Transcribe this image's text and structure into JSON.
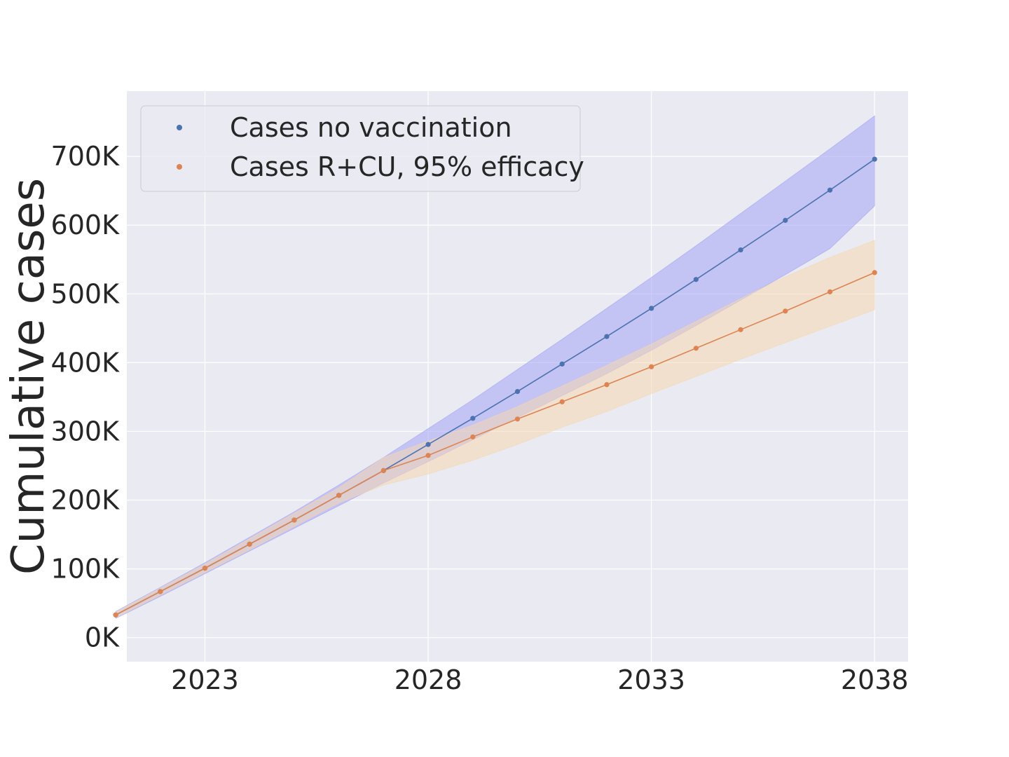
{
  "chart_data": {
    "type": "line",
    "title": "",
    "xlabel": "",
    "ylabel": "Cumulative cases",
    "xlim": [
      2021.25,
      2038.75
    ],
    "ylim": [
      -35000,
      795000
    ],
    "x_ticks": [
      2023,
      2028,
      2033,
      2038
    ],
    "x_tick_labels": [
      "2023",
      "2028",
      "2033",
      "2038"
    ],
    "y_ticks": [
      0,
      100000,
      200000,
      300000,
      400000,
      500000,
      600000,
      700000
    ],
    "y_tick_labels": [
      "0K",
      "100K",
      "200K",
      "300K",
      "400K",
      "500K",
      "600K",
      "700K"
    ],
    "grid": true,
    "legend_position": "top-left",
    "x": [
      2021,
      2022,
      2023,
      2024,
      2025,
      2026,
      2027,
      2028,
      2029,
      2030,
      2031,
      2032,
      2033,
      2034,
      2035,
      2036,
      2037,
      2038
    ],
    "series": [
      {
        "name": "Cases no vaccination",
        "color": "#4c72b0",
        "band_color": "#a3a3f5",
        "values": [
          33000,
          67000,
          101000,
          136000,
          171000,
          207000,
          243000,
          281000,
          319000,
          358000,
          398000,
          438000,
          479000,
          521000,
          564000,
          607000,
          651000,
          696000
        ],
        "lower": [
          28000,
          60000,
          93000,
          126000,
          159000,
          192000,
          225000,
          256000,
          288000,
          320000,
          352000,
          384000,
          418000,
          454000,
          491000,
          528000,
          566000,
          628000
        ],
        "upper": [
          38000,
          73000,
          109000,
          146000,
          183000,
          222000,
          262000,
          304000,
          346000,
          390000,
          434000,
          479000,
          524000,
          570000,
          617000,
          664000,
          711000,
          759000
        ]
      },
      {
        "name": "Cases R+CU, 95% efficacy",
        "color": "#dd8452",
        "band_color": "#f5d7b0",
        "values": [
          33000,
          67000,
          101000,
          136000,
          171000,
          207000,
          243000,
          265000,
          292000,
          318000,
          343000,
          368000,
          394000,
          421000,
          448000,
          475000,
          503000,
          531000
        ],
        "lower": [
          29000,
          62000,
          95000,
          128000,
          162000,
          196000,
          222000,
          238000,
          258000,
          281000,
          306000,
          329000,
          355000,
          380000,
          405000,
          429000,
          453000,
          477000
        ],
        "upper": [
          37000,
          72000,
          107000,
          144000,
          181000,
          218000,
          262000,
          286000,
          309000,
          336000,
          366000,
          396000,
          427000,
          460000,
          493000,
          525000,
          553000,
          578000
        ]
      }
    ]
  }
}
